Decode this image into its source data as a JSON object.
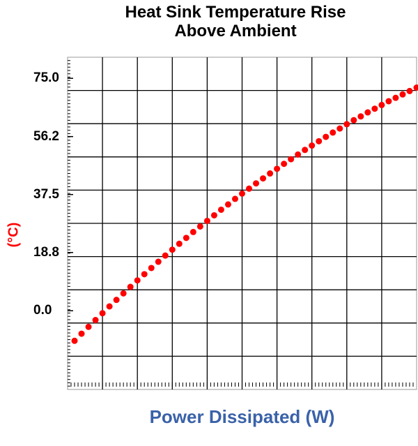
{
  "chart_data": {
    "type": "scatter",
    "title": "Heat Sink Temperature Rise Above Ambient",
    "xlabel": "Power Dissipated (W)",
    "ylabel": "(°C)",
    "color": "#ff0000",
    "x": [
      0.2,
      0.4,
      0.6,
      0.8,
      1.0,
      1.2,
      1.4,
      1.6,
      1.8,
      2.0,
      2.2,
      2.4,
      2.6,
      2.8,
      3.0,
      3.2,
      3.4,
      3.6,
      3.8,
      4.0,
      4.2,
      4.4,
      4.6,
      4.8,
      5.0,
      5.2,
      5.4,
      5.6,
      5.8,
      6.0,
      6.2,
      6.4,
      6.6,
      6.8,
      7.0,
      7.2,
      7.4,
      7.6,
      7.8,
      8.0,
      8.2,
      8.4,
      8.6,
      8.8,
      9.0,
      9.2,
      9.4,
      9.6,
      9.8,
      10.0
    ],
    "values": [
      -9.7,
      -7.4,
      -5.2,
      -3.0,
      -0.8,
      1.4,
      3.5,
      5.6,
      7.7,
      9.8,
      11.8,
      13.8,
      15.8,
      17.8,
      19.7,
      21.6,
      23.5,
      25.4,
      27.2,
      29.0,
      30.8,
      32.6,
      34.3,
      36.1,
      37.8,
      39.4,
      41.1,
      42.7,
      44.3,
      45.8,
      47.4,
      48.9,
      50.4,
      51.9,
      53.3,
      54.7,
      56.1,
      57.5,
      58.8,
      60.2,
      61.5,
      62.7,
      64.0,
      65.2,
      66.4,
      67.6,
      68.7,
      69.8,
      70.9,
      72.0
    ],
    "xlim": [
      0,
      10
    ],
    "ylim": [
      -25.4,
      81.8
    ],
    "yticks": [
      {
        "value": 75,
        "label": "75.0"
      },
      {
        "value": 56.2,
        "label": "56.2"
      },
      {
        "value": 37.5,
        "label": "37.5"
      },
      {
        "value": 18.8,
        "label": "18.8"
      },
      {
        "value": 0,
        "label": "0.0"
      }
    ],
    "grid": true
  }
}
